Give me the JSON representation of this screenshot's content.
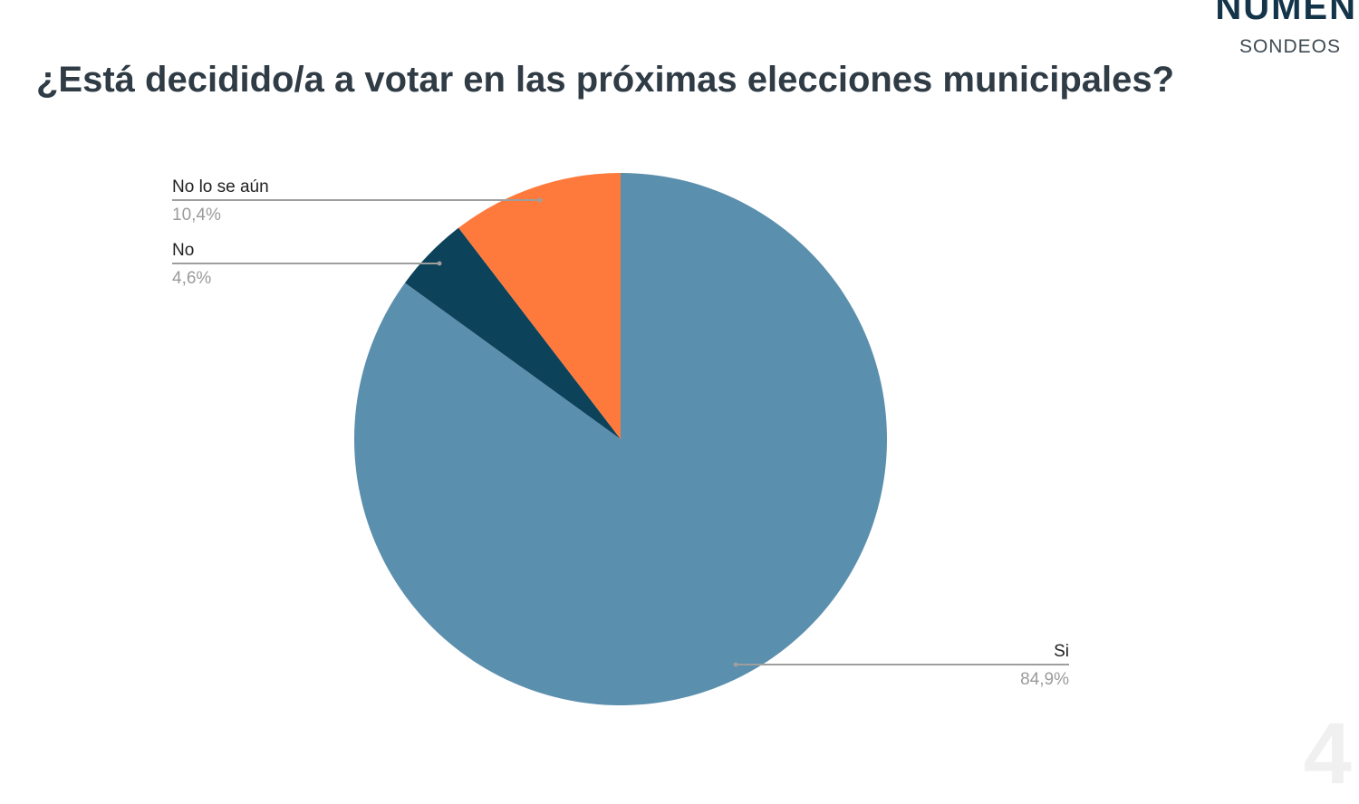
{
  "brand": {
    "name": "NUMEN",
    "subtitle": "SONDEOS"
  },
  "page_number": "4",
  "colors": {
    "si": "#5b8fae",
    "no": "#0c425a",
    "no_se": "#fd7a3c",
    "title": "#2f3b45"
  },
  "chart_data": {
    "type": "pie",
    "title": "¿Está decidido/a a votar en las próximas elecciones municipales?",
    "slices": [
      {
        "label": "Si",
        "value": 84.9,
        "display": "84,9%",
        "color": "#5b8fae"
      },
      {
        "label": "No",
        "value": 4.6,
        "display": "4,6%",
        "color": "#0c425a"
      },
      {
        "label": "No lo se aún",
        "value": 10.4,
        "display": "10,4%",
        "color": "#fd7a3c"
      }
    ],
    "start_angle": "12 o'clock",
    "direction": "clockwise",
    "legend": "none"
  }
}
